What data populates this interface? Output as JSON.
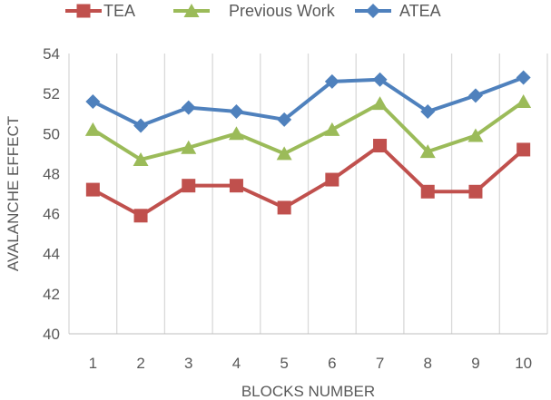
{
  "chart_data": {
    "type": "line",
    "title": "",
    "xlabel": "BLOCKS NUMBER",
    "ylabel": "AVALANCHE EFFECT",
    "categories": [
      "1",
      "2",
      "3",
      "4",
      "5",
      "6",
      "7",
      "8",
      "9",
      "10"
    ],
    "ylim": [
      40,
      54
    ],
    "yticks": [
      "40",
      "42",
      "44",
      "46",
      "48",
      "50",
      "52",
      "54"
    ],
    "grid": "vertical",
    "legend": "top",
    "series": [
      {
        "name": "TEA",
        "marker": "square",
        "color": "#C0504D",
        "values": [
          47.2,
          45.9,
          47.4,
          47.4,
          46.3,
          47.7,
          49.4,
          47.1,
          47.1,
          49.2
        ]
      },
      {
        "name": "Previous Work",
        "marker": "triangle",
        "color": "#9BBB59",
        "values": [
          50.2,
          48.7,
          49.3,
          50.0,
          49.0,
          50.2,
          51.5,
          49.1,
          49.9,
          51.6
        ]
      },
      {
        "name": "ATEA",
        "marker": "diamond",
        "color": "#4F81BD",
        "values": [
          51.6,
          50.4,
          51.3,
          51.1,
          50.7,
          52.6,
          52.7,
          51.1,
          51.9,
          52.8
        ]
      }
    ]
  }
}
